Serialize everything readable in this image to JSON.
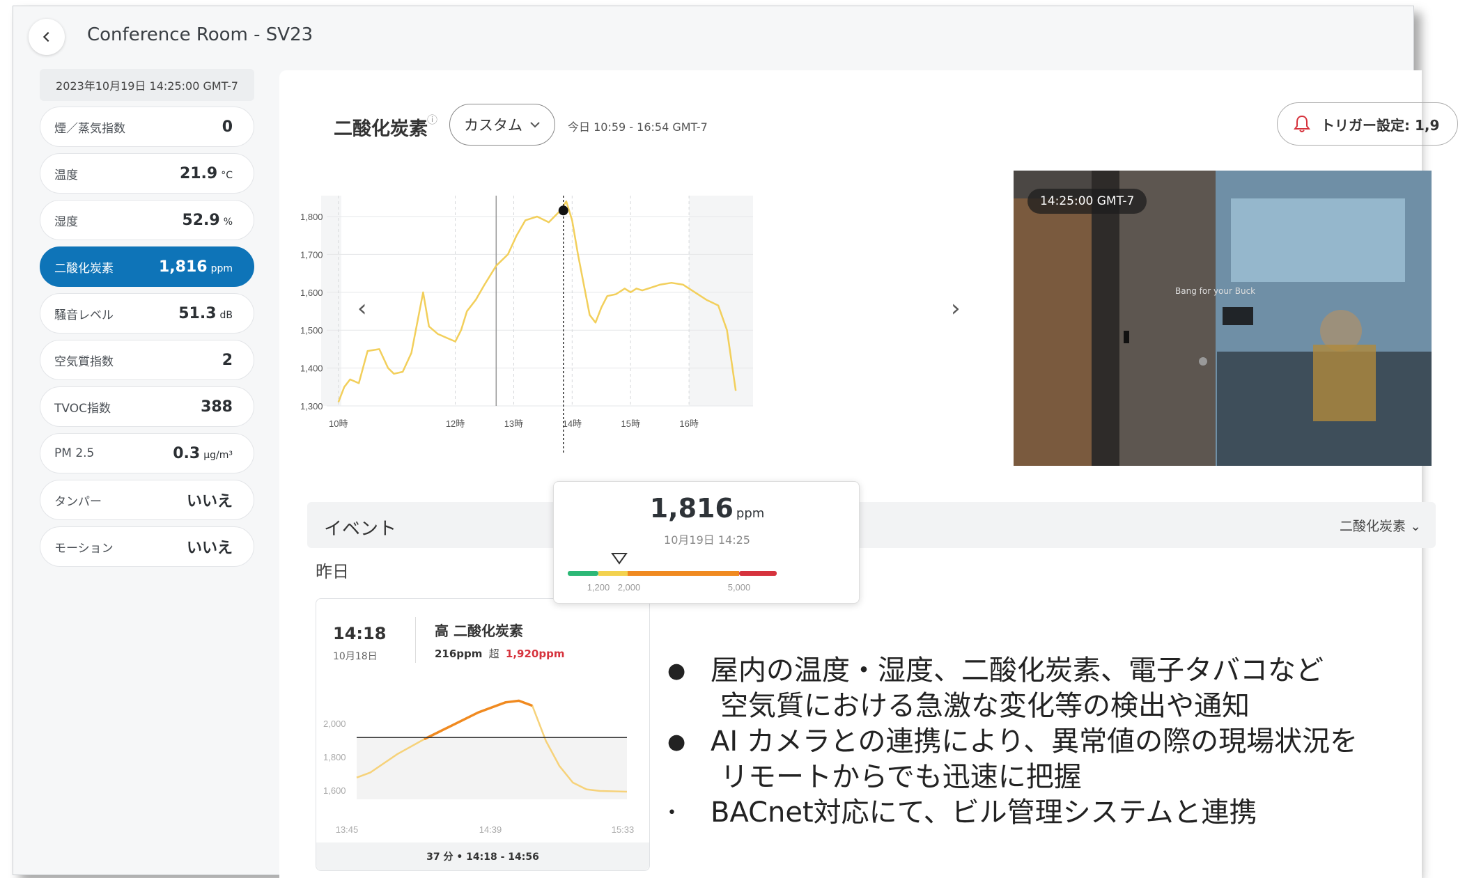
{
  "header": {
    "title": "Conference Room - SV23",
    "back_icon": "chevron-left-icon"
  },
  "sidebar": {
    "timestamp": "2023年10月19日 14:25:00 GMT-7",
    "metrics": [
      {
        "label": "煙／蒸気指数",
        "value": "0",
        "unit": ""
      },
      {
        "label": "温度",
        "value": "21.9",
        "unit": "°C"
      },
      {
        "label": "湿度",
        "value": "52.9",
        "unit": "%"
      },
      {
        "label": "二酸化炭素",
        "value": "1,816",
        "unit": "ppm",
        "active": true
      },
      {
        "label": "騒音レベル",
        "value": "51.3",
        "unit": "dB"
      },
      {
        "label": "空気質指数",
        "value": "2",
        "unit": ""
      },
      {
        "label": "TVOC指数",
        "value": "388",
        "unit": ""
      },
      {
        "label": "PM 2.5",
        "value": "0.3",
        "unit": "μg/m³"
      },
      {
        "label": "タンパー",
        "value": "いいえ",
        "unit": ""
      },
      {
        "label": "モーション",
        "value": "いいえ",
        "unit": ""
      }
    ]
  },
  "chart_panel": {
    "title": "二酸化炭素",
    "help_icon": "ⓘ",
    "range_button": "カスタム",
    "range_text": "今日 10:59 - 16:54 GMT-7",
    "trigger_label": "トリガー設定: 1,9"
  },
  "chart_data": {
    "type": "line",
    "color": "#f2cf5b",
    "xlabel": "",
    "ylabel": "",
    "ylim": [
      1300,
      1850
    ],
    "xlim": [
      9.8,
      17.0
    ],
    "y_ticks": [
      "1,300",
      "1,400",
      "1,500",
      "1,600",
      "1,700",
      "1,800"
    ],
    "x_ticks": [
      "10時",
      "12時",
      "13時",
      "14時",
      "15時",
      "16時"
    ],
    "x_tick_values": [
      10,
      12,
      13,
      14,
      15,
      16
    ],
    "x": [
      10.0,
      10.1,
      10.2,
      10.35,
      10.5,
      10.7,
      10.85,
      10.95,
      11.1,
      11.25,
      11.35,
      11.45,
      11.55,
      11.7,
      11.85,
      12.0,
      12.1,
      12.2,
      12.35,
      12.5,
      12.7,
      12.9,
      13.05,
      13.2,
      13.4,
      13.6,
      13.8,
      13.9,
      14.0,
      14.1,
      14.2,
      14.3,
      14.4,
      14.5,
      14.6,
      14.75,
      14.9,
      15.0,
      15.1,
      15.2,
      15.3,
      15.5,
      15.7,
      15.9,
      16.1,
      16.3,
      16.5,
      16.65,
      16.8
    ],
    "y": [
      1310,
      1350,
      1370,
      1360,
      1445,
      1450,
      1400,
      1385,
      1390,
      1440,
      1520,
      1600,
      1510,
      1490,
      1480,
      1470,
      1500,
      1550,
      1580,
      1620,
      1670,
      1700,
      1750,
      1790,
      1800,
      1785,
      1816,
      1840,
      1790,
      1700,
      1620,
      1540,
      1520,
      1560,
      1590,
      1595,
      1610,
      1600,
      1610,
      1605,
      1610,
      1620,
      1625,
      1620,
      1600,
      1580,
      1565,
      1500,
      1340
    ],
    "highlight": {
      "x": 13.85,
      "y": 1816
    }
  },
  "tooltip": {
    "value": "1,816",
    "unit": "ppm",
    "date": "10月19日 14:25",
    "scale_labels": [
      "1,200",
      "2,000",
      "5,000"
    ],
    "marker_icon": "triangle-down-icon"
  },
  "camera": {
    "timestamp": "14:25:00 GMT-7",
    "sign_text": "Bang for your Buck"
  },
  "events": {
    "title": "イベント",
    "filter": "二酸化炭素",
    "group_label": "昨日",
    "card": {
      "time": "14:18",
      "date": "10月18日",
      "title": "高 二酸化炭素",
      "detail_value": "216ppm",
      "detail_over": "超",
      "detail_threshold": "1,920ppm",
      "footer": "37 分 • 14:18 - 14:56"
    }
  },
  "event_chart_data": {
    "type": "line",
    "y_ticks": [
      "1,600",
      "1,800",
      "2,000"
    ],
    "x_ticks": [
      "13:45",
      "14:39",
      "15:33"
    ],
    "threshold": 1920,
    "ylim": [
      1550,
      2250
    ],
    "x": [
      0,
      0.05,
      0.15,
      0.25,
      0.35,
      0.45,
      0.55,
      0.6,
      0.65,
      0.7,
      0.75,
      0.8,
      0.85,
      0.9,
      0.95,
      1.0
    ],
    "y": [
      1680,
      1710,
      1820,
      1910,
      1990,
      2070,
      2130,
      2140,
      2110,
      1900,
      1750,
      1650,
      1610,
      1600,
      1598,
      1596
    ]
  },
  "bullets": [
    {
      "text": "屋内の温度・湿度、二酸化炭素、電子タバコなど",
      "dot": "●"
    },
    {
      "text": "空気質における急激な変化等の検出や通知",
      "dot": "",
      "indent": true
    },
    {
      "text": "AI カメラとの連携により、異常値の際の現場状況を",
      "dot": "●"
    },
    {
      "text": "リモートからでも迅速に把握",
      "dot": "",
      "indent": true
    },
    {
      "text": "BACnet対応にて、ビル管理システムと連携",
      "dot": "•"
    }
  ]
}
